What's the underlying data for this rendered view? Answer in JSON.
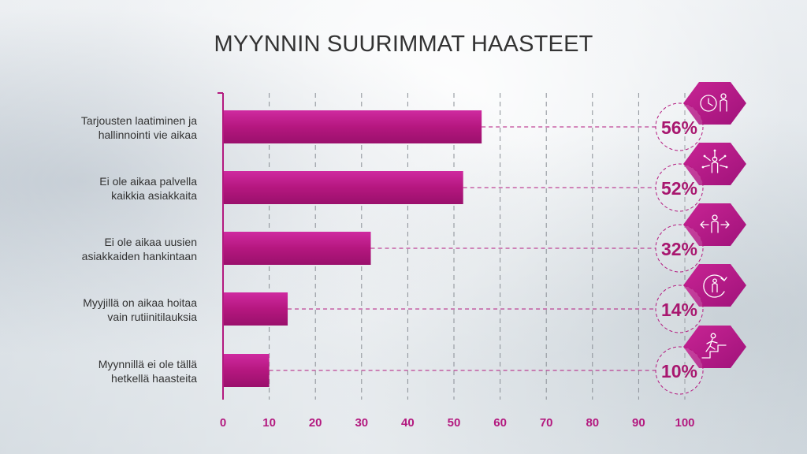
{
  "chart_data": {
    "type": "bar",
    "orientation": "horizontal",
    "title": "MYYNNIN SUURIMMAT HAASTEET",
    "categories": [
      [
        "Tarjousten laatiminen ja",
        "hallinnointi vie aikaa"
      ],
      [
        "Ei ole aikaa palvella",
        "kaikkia asiakkaita"
      ],
      [
        "Ei ole aikaa uusien",
        "asiakkaiden hankintaan"
      ],
      [
        "Myyjillä on aikaa hoitaa",
        "vain rutiinitilauksia"
      ],
      [
        "Myynnillä ei ole tällä",
        "hetkellä haasteita"
      ]
    ],
    "values": [
      56,
      52,
      32,
      14,
      10
    ],
    "value_labels": [
      "56%",
      "52%",
      "32%",
      "14%",
      "10%"
    ],
    "icons": [
      "clock-person-icon",
      "person-arrows-icon",
      "person-left-right-icon",
      "person-cycle-icon",
      "person-stairs-icon"
    ],
    "xlim": [
      0,
      100
    ],
    "xticks": [
      0,
      10,
      20,
      30,
      40,
      50,
      60,
      70,
      80,
      90,
      100
    ],
    "grid": true,
    "colors": {
      "bar": "#b0177f",
      "bar_light": "#c9259a",
      "accent": "#b3197f",
      "text": "#333333"
    }
  }
}
